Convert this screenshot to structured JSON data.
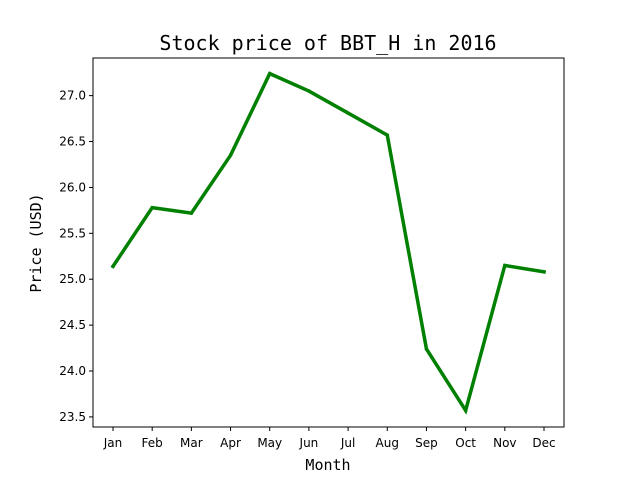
{
  "chart_data": {
    "type": "line",
    "title": "Stock price of BBT_H in 2016",
    "xlabel": "Month",
    "ylabel": "Price (USD)",
    "categories": [
      "Jan",
      "Feb",
      "Mar",
      "Apr",
      "May",
      "Jun",
      "Jul",
      "Aug",
      "Sep",
      "Oct",
      "Nov",
      "Dec"
    ],
    "series": [
      {
        "values": [
          25.14,
          25.78,
          25.72,
          26.35,
          27.24,
          27.05,
          26.81,
          26.57,
          24.24,
          23.57,
          25.15,
          25.08
        ],
        "color": "#008000"
      }
    ],
    "yticks": [
      "23.5",
      "24.0",
      "24.5",
      "25.0",
      "25.5",
      "26.0",
      "26.5",
      "27.0"
    ],
    "ylim": [
      23.39,
      27.41
    ],
    "grid": false,
    "legend": "none"
  }
}
